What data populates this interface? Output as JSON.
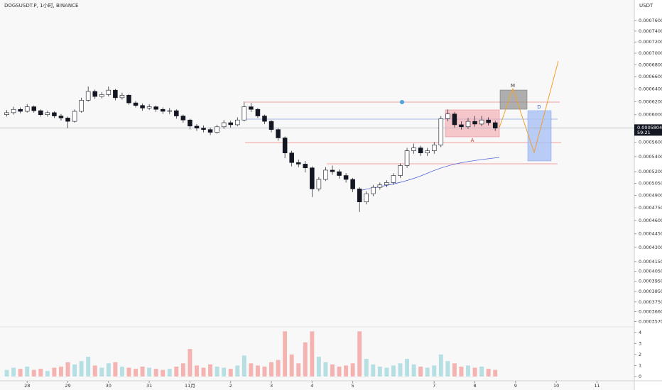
{
  "chart_data": {
    "type": "candlestick",
    "title": "DOGSUSDT.P, 1小时, BINANCE",
    "currency": "USDT",
    "last_price": 0.0005804,
    "countdown": "59:21",
    "annotations": [
      "M",
      "D",
      "A"
    ],
    "log_scale": true,
    "up_color": "#ffffff",
    "down_color": "#131722",
    "volume_up_color": "#b6dfe4",
    "volume_down_color": "#f4b3b1",
    "x": [
      -12,
      -8,
      -4,
      0,
      4,
      8,
      12,
      16,
      20,
      24,
      28,
      32,
      36,
      40,
      44,
      48,
      52,
      56,
      60,
      64,
      68,
      72,
      76,
      80,
      84,
      88,
      92,
      96,
      100,
      104,
      108,
      112,
      116,
      120,
      124,
      128,
      132,
      136,
      140,
      144,
      148,
      152,
      156,
      160,
      164,
      168,
      172,
      176,
      180,
      184,
      188,
      192,
      196,
      200,
      204,
      208,
      212,
      216,
      220,
      224,
      228,
      232,
      236,
      240,
      244,
      248,
      252,
      256,
      260,
      264,
      268,
      272,
      276
    ],
    "open": [
      0.0006,
      0.000603,
      0.000608,
      0.000605,
      0.000612,
      0.000606,
      0.0006,
      0.000603,
      0.000598,
      0.000595,
      0.00059,
      0.000605,
      0.000622,
      0.000636,
      0.000628,
      0.000631,
      0.000638,
      0.000626,
      0.00063,
      0.000618,
      0.000614,
      0.00061,
      0.000612,
      0.000608,
      0.000605,
      0.000606,
      0.000598,
      0.000592,
      0.000583,
      0.00058,
      0.000578,
      0.000574,
      0.000582,
      0.000588,
      0.000585,
      0.000592,
      0.000612,
      0.000608,
      0.000598,
      0.00059,
      0.000578,
      0.000566,
      0.000545,
      0.000532,
      0.00053,
      0.000525,
      0.000498,
      0.00051,
      0.000522,
      0.00052,
      0.000515,
      0.00051,
      0.000498,
      0.000482,
      0.000492,
      0.0005,
      0.000503,
      0.000506,
      0.000515,
      0.000528,
      0.000548,
      0.000552,
      0.000545,
      0.000548,
      0.000556,
      0.000594,
      0.000601,
      0.000585,
      0.000582,
      0.00059,
      0.000586,
      0.000592,
      0.000588
    ],
    "high": [
      0.000607,
      0.000612,
      0.000611,
      0.000616,
      0.000614,
      0.000608,
      0.000606,
      0.000605,
      0.000601,
      0.000597,
      0.000608,
      0.000626,
      0.000644,
      0.000639,
      0.000635,
      0.000644,
      0.00064,
      0.000634,
      0.000632,
      0.000621,
      0.000617,
      0.000616,
      0.000614,
      0.000611,
      0.00061,
      0.000608,
      0.0006,
      0.000594,
      0.000586,
      0.000584,
      0.000581,
      0.000585,
      0.000592,
      0.000591,
      0.000596,
      0.00062,
      0.000618,
      0.00061,
      0.0006,
      0.000592,
      0.00058,
      0.000568,
      0.000548,
      0.000536,
      0.000534,
      0.000527,
      0.000513,
      0.000526,
      0.000528,
      0.000523,
      0.000518,
      0.000512,
      0.0005,
      0.000495,
      0.000503,
      0.000506,
      0.000509,
      0.000518,
      0.000531,
      0.000552,
      0.000558,
      0.000555,
      0.000552,
      0.00056,
      0.000598,
      0.000608,
      0.000604,
      0.00059,
      0.000595,
      0.000598,
      0.000598,
      0.000596,
      0.000591
    ],
    "low": [
      0.000597,
      0.0006,
      0.000602,
      0.000603,
      0.000603,
      0.000597,
      0.000597,
      0.000595,
      0.000591,
      0.00058,
      0.000588,
      0.000603,
      0.00062,
      0.000624,
      0.000625,
      0.000628,
      0.000622,
      0.000623,
      0.000615,
      0.000611,
      0.000606,
      0.000607,
      0.000604,
      0.000601,
      0.000601,
      0.000594,
      0.000588,
      0.000578,
      0.000576,
      0.000574,
      0.00057,
      0.000572,
      0.000579,
      0.000581,
      0.000583,
      0.00059,
      0.000604,
      0.000595,
      0.000586,
      0.000574,
      0.000562,
      0.000538,
      0.000527,
      0.000526,
      0.000519,
      0.000488,
      0.000495,
      0.000508,
      0.000516,
      0.000511,
      0.000506,
      0.000494,
      0.00047,
      0.000479,
      0.000489,
      0.000497,
      0.0005,
      0.000503,
      0.000512,
      0.000525,
      0.000544,
      0.000541,
      0.000541,
      0.000544,
      0.000553,
      0.00059,
      0.000581,
      0.000578,
      0.000579,
      0.000582,
      0.000583,
      0.000584,
      0.000576
    ],
    "close": [
      0.000603,
      0.000608,
      0.000605,
      0.000612,
      0.000606,
      0.0006,
      0.000603,
      0.000598,
      0.000595,
      0.00059,
      0.000605,
      0.000622,
      0.000636,
      0.000628,
      0.000631,
      0.000638,
      0.000626,
      0.00063,
      0.000618,
      0.000614,
      0.00061,
      0.000612,
      0.000608,
      0.000605,
      0.000606,
      0.000598,
      0.000592,
      0.000583,
      0.00058,
      0.000578,
      0.000574,
      0.000582,
      0.000588,
      0.000585,
      0.000592,
      0.000612,
      0.000608,
      0.000598,
      0.00059,
      0.000578,
      0.000566,
      0.000545,
      0.000532,
      0.00053,
      0.000525,
      0.000498,
      0.00051,
      0.000522,
      0.00052,
      0.000515,
      0.00051,
      0.000498,
      0.000482,
      0.000492,
      0.0005,
      0.000503,
      0.000506,
      0.000515,
      0.000528,
      0.000548,
      0.000552,
      0.000545,
      0.000548,
      0.000556,
      0.000594,
      0.000601,
      0.000585,
      0.000582,
      0.00059,
      0.000586,
      0.000592,
      0.000588,
      0.00058
    ],
    "volume": [
      0.6,
      0.8,
      0.7,
      0.9,
      0.6,
      0.7,
      0.5,
      0.8,
      0.9,
      1.3,
      1.1,
      1.4,
      1.8,
      1.0,
      0.8,
      1.2,
      1.3,
      0.9,
      0.8,
      0.7,
      0.9,
      0.8,
      0.7,
      0.6,
      0.7,
      0.9,
      1.2,
      2.5,
      1.0,
      0.8,
      1.1,
      0.9,
      0.8,
      0.7,
      1.0,
      1.9,
      1.2,
      1.0,
      0.9,
      1.3,
      1.5,
      4.1,
      2.0,
      1.2,
      3.1,
      4.1,
      1.8,
      1.3,
      1.1,
      0.9,
      1.0,
      1.2,
      4.1,
      1.6,
      1.1,
      0.9,
      0.8,
      1.0,
      1.2,
      1.6,
      1.1,
      0.9,
      0.8,
      1.0,
      2.0,
      1.4,
      1.2,
      0.9,
      1.0,
      0.8,
      0.9,
      0.7,
      0.6
    ],
    "xlim": [
      -16,
      358
    ],
    "xticks": [
      {
        "value": 0,
        "label": "28"
      },
      {
        "value": 24,
        "label": "29"
      },
      {
        "value": 48,
        "label": "30"
      },
      {
        "value": 72,
        "label": "31"
      },
      {
        "value": 96,
        "label": "11月"
      },
      {
        "value": 120,
        "label": "2"
      },
      {
        "value": 144,
        "label": "3"
      },
      {
        "value": 168,
        "label": "4"
      },
      {
        "value": 192,
        "label": "5"
      },
      {
        "value": 240,
        "label": "7"
      },
      {
        "value": 264,
        "label": "8"
      },
      {
        "value": 288,
        "label": "9"
      },
      {
        "value": 312,
        "label": "10"
      },
      {
        "value": 336,
        "label": "11"
      }
    ],
    "ylim": [
      0.000351,
      0.0008
    ],
    "yticks": [
      {
        "value": 0.00076,
        "label": "0.0007600"
      },
      {
        "value": 0.00074,
        "label": "0.0007400"
      },
      {
        "value": 0.00072,
        "label": "0.0007200"
      },
      {
        "value": 0.0007,
        "label": "0.0007000"
      },
      {
        "value": 0.00068,
        "label": "0.0006800"
      },
      {
        "value": 0.00066,
        "label": "0.0006600"
      },
      {
        "value": 0.00064,
        "label": "0.0006400"
      },
      {
        "value": 0.00062,
        "label": "0.0006200"
      },
      {
        "value": 0.0006,
        "label": "0.0006000"
      },
      {
        "value": 0.00056,
        "label": "0.0005600"
      },
      {
        "value": 0.00054,
        "label": "0.0005400"
      },
      {
        "value": 0.00052,
        "label": "0.0005200"
      },
      {
        "value": 0.000505,
        "label": "0.0005050"
      },
      {
        "value": 0.00049,
        "label": "0.0004900"
      },
      {
        "value": 0.000475,
        "label": "0.0004750"
      },
      {
        "value": 0.00046,
        "label": "0.0004600"
      },
      {
        "value": 0.000445,
        "label": "0.0004450"
      },
      {
        "value": 0.00043,
        "label": "0.0004300"
      },
      {
        "value": 0.000415,
        "label": "0.0004150"
      },
      {
        "value": 0.000405,
        "label": "0.0004050"
      },
      {
        "value": 0.000395,
        "label": "0.0003950"
      },
      {
        "value": 0.000385,
        "label": "0.0003850"
      },
      {
        "value": 0.000375,
        "label": "0.0003750"
      },
      {
        "value": 0.000366,
        "label": "0.0003660"
      },
      {
        "value": 0.000357,
        "label": "0.0003570"
      }
    ],
    "volume_ylim": [
      0,
      4.5
    ],
    "volume_yticks": [
      0,
      1,
      2,
      3,
      4
    ]
  }
}
